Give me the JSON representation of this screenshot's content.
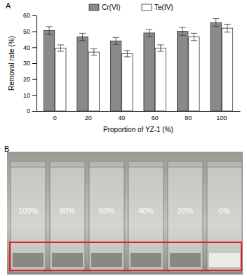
{
  "chart_data": {
    "type": "bar",
    "title": "A",
    "categories": [
      "0",
      "20",
      "40",
      "60",
      "80",
      "100"
    ],
    "series": [
      {
        "name": "Cr(VI)",
        "color": "#8a8a8a",
        "values": [
          50.5,
          46.5,
          44,
          49,
          50,
          55.5
        ],
        "errors": [
          2.5,
          2.3,
          2.2,
          2.3,
          2.5,
          2.5
        ]
      },
      {
        "name": "Te(IV)",
        "color": "#ffffff",
        "values": [
          39.5,
          37,
          36,
          39.5,
          46.5,
          52
        ],
        "errors": [
          2,
          2,
          2,
          2,
          2.3,
          2.5
        ]
      }
    ],
    "x_label": "Proportion of YZ-1 (%)",
    "y_label": "Removal rate (%)",
    "ylim": [
      0,
      60
    ],
    "yticks": [
      0,
      10,
      20,
      30,
      40,
      50,
      60
    ],
    "legend": "top",
    "grid": false
  },
  "photo": {
    "title": "B",
    "labels": [
      "100%",
      "80%",
      "60%",
      "40%",
      "20%",
      "0%"
    ]
  }
}
